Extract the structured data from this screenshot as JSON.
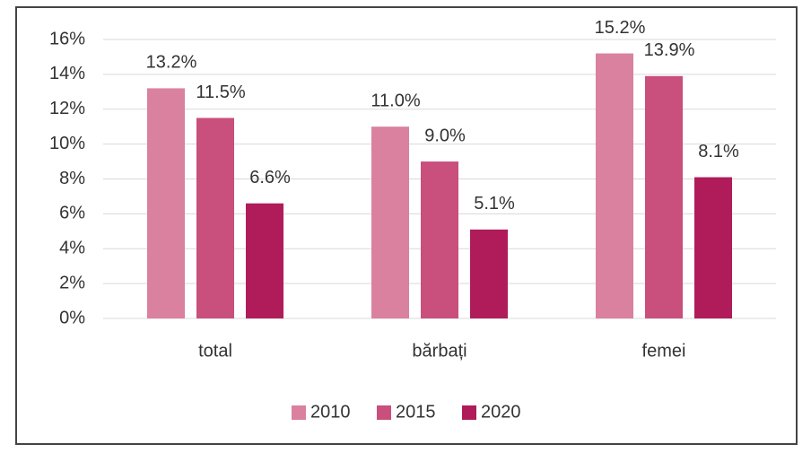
{
  "chart_data": {
    "type": "bar",
    "categories": [
      "total",
      "bărbați",
      "femei"
    ],
    "series": [
      {
        "name": "2010",
        "color": "#d9819f",
        "values": [
          13.2,
          11.0,
          15.2
        ],
        "value_labels": [
          "13.2%",
          "11.0%",
          "15.2%"
        ]
      },
      {
        "name": "2015",
        "color": "#c94f7c",
        "values": [
          11.5,
          9.0,
          13.9
        ],
        "value_labels": [
          "11.5%",
          "9.0%",
          "13.9%"
        ]
      },
      {
        "name": "2020",
        "color": "#b01c5a",
        "values": [
          6.6,
          5.1,
          8.1
        ],
        "value_labels": [
          "6.6%",
          "5.1%",
          "8.1%"
        ]
      }
    ],
    "ylim": [
      0,
      16
    ],
    "yticks": [
      {
        "value": 0,
        "label": "0%"
      },
      {
        "value": 2,
        "label": "2%"
      },
      {
        "value": 4,
        "label": "4%"
      },
      {
        "value": 6,
        "label": "6%"
      },
      {
        "value": 8,
        "label": "8%"
      },
      {
        "value": 10,
        "label": "10%"
      },
      {
        "value": 12,
        "label": "12%"
      },
      {
        "value": 14,
        "label": "14%"
      },
      {
        "value": 16,
        "label": "16%"
      }
    ],
    "grid": true,
    "legend": "bottom"
  }
}
